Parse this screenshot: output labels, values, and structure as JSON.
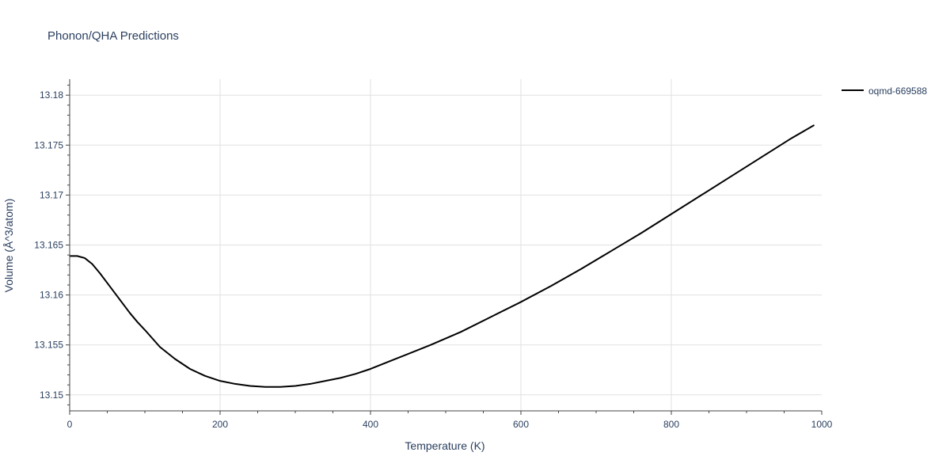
{
  "chart_data": {
    "type": "line",
    "title": "Phonon/QHA Predictions",
    "xlabel": "Temperature (K)",
    "ylabel": "Volume (Å^3/atom)",
    "xlim": [
      0,
      1000
    ],
    "ylim": [
      13.1484,
      13.1816
    ],
    "x_ticks": [
      0,
      200,
      400,
      600,
      800,
      1000
    ],
    "x_tick_labels": [
      "0",
      "200",
      "400",
      "600",
      "800",
      "1000"
    ],
    "y_ticks": [
      13.15,
      13.155,
      13.16,
      13.165,
      13.17,
      13.175,
      13.18
    ],
    "y_tick_labels": [
      "13.15",
      "13.155",
      "13.16",
      "13.165",
      "13.17",
      "13.175",
      "13.18"
    ],
    "grid": true,
    "legend_position": "top-right",
    "series": [
      {
        "name": "oqmd-669588",
        "color": "#000000",
        "x": [
          0,
          10,
          20,
          30,
          40,
          50,
          60,
          70,
          80,
          90,
          100,
          120,
          140,
          160,
          180,
          200,
          220,
          240,
          260,
          280,
          300,
          320,
          340,
          360,
          380,
          400,
          440,
          480,
          520,
          560,
          600,
          640,
          680,
          720,
          760,
          800,
          840,
          880,
          920,
          960,
          990
        ],
        "y": [
          13.1639,
          13.1639,
          13.1637,
          13.1631,
          13.1622,
          13.1612,
          13.1602,
          13.1592,
          13.1582,
          13.1573,
          13.1565,
          13.1548,
          13.1536,
          13.1526,
          13.1519,
          13.1514,
          13.1511,
          13.1509,
          13.1508,
          13.1508,
          13.1509,
          13.1511,
          13.1514,
          13.1517,
          13.1521,
          13.1526,
          13.1538,
          13.155,
          13.1563,
          13.1578,
          13.1593,
          13.1609,
          13.1626,
          13.1644,
          13.1662,
          13.1681,
          13.17,
          13.1719,
          13.1738,
          13.1757,
          13.177
        ]
      }
    ]
  }
}
